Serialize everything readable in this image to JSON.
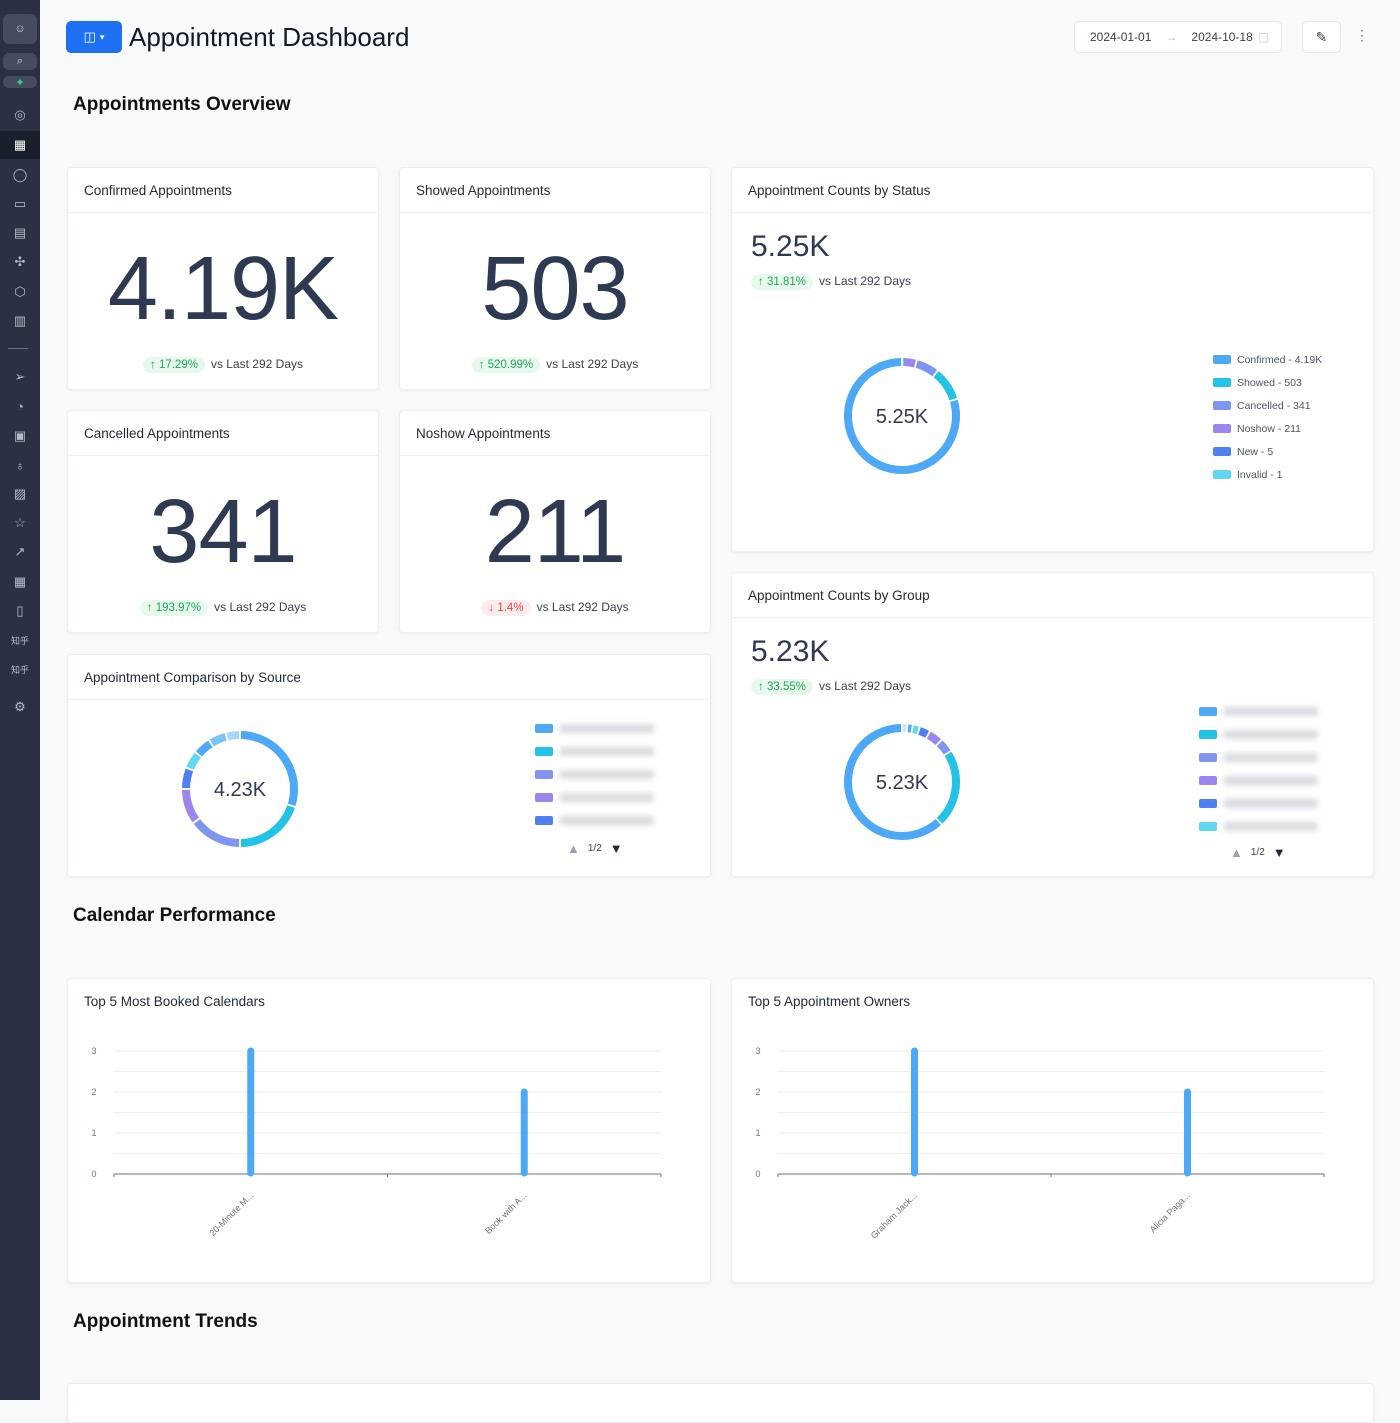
{
  "header": {
    "title": "Appointment Dashboard",
    "date_start": "2024-01-01",
    "date_end": "2024-10-18"
  },
  "sections": {
    "overview": "Appointments Overview",
    "calendar": "Calendar Performance",
    "trends": "Appointment Trends"
  },
  "colors": {
    "accent": "#1f6ff2",
    "up": "#22a45d",
    "down": "#e5484d",
    "bar": "#4da8f5"
  },
  "kpis": [
    {
      "title": "Confirmed Appointments",
      "value": "4.19K",
      "change": "17.29%",
      "direction": "up",
      "compare": "vs Last 292 Days"
    },
    {
      "title": "Showed Appointments",
      "value": "503",
      "change": "520.99%",
      "direction": "up",
      "compare": "vs Last 292 Days"
    },
    {
      "title": "Cancelled Appointments",
      "value": "341",
      "change": "193.97%",
      "direction": "up",
      "compare": "vs Last 292 Days"
    },
    {
      "title": "Noshow Appointments",
      "value": "211",
      "change": "1.4%",
      "direction": "down",
      "compare": "vs Last 292 Days"
    }
  ],
  "status": {
    "title": "Appointment Counts by Status",
    "value": "5.25K",
    "change": "31.81%",
    "compare": "vs Last 292 Days",
    "center": "5.25K",
    "legend": [
      {
        "label": "Confirmed - 4.19K",
        "value": 4190,
        "color": "#4da8f5"
      },
      {
        "label": "Showed - 503",
        "value": 503,
        "color": "#22c3e6"
      },
      {
        "label": "Cancelled - 341",
        "value": 341,
        "color": "#7f95f0"
      },
      {
        "label": "Noshow - 211",
        "value": 211,
        "color": "#9b86ee"
      },
      {
        "label": "New - 5",
        "value": 5,
        "color": "#4f7ff0"
      },
      {
        "label": "Invalid - 1",
        "value": 1,
        "color": "#5fd8f0"
      }
    ]
  },
  "group": {
    "title": "Appointment Counts by Group",
    "value": "5.23K",
    "change": "33.55%",
    "compare": "vs Last 292 Days",
    "center": "5.23K",
    "pager": "1/2",
    "segments": [
      {
        "share": 0.62,
        "color": "#4da8f5"
      },
      {
        "share": 0.22,
        "color": "#22c3e6"
      },
      {
        "share": 0.04,
        "color": "#7f95f0"
      },
      {
        "share": 0.04,
        "color": "#9b86ee"
      },
      {
        "share": 0.03,
        "color": "#4f7ff0"
      },
      {
        "share": 0.02,
        "color": "#5fd8f0"
      },
      {
        "share": 0.015,
        "color": "#4da8f5"
      },
      {
        "share": 0.015,
        "color": "#c9e8ff"
      }
    ]
  },
  "source": {
    "title": "Appointment Comparison by Source",
    "center": "4.23K",
    "pager": "1/2",
    "segments": [
      {
        "share": 0.3,
        "color": "#4da8f5"
      },
      {
        "share": 0.2,
        "color": "#22c3e6"
      },
      {
        "share": 0.15,
        "color": "#7f95f0"
      },
      {
        "share": 0.1,
        "color": "#9b86ee"
      },
      {
        "share": 0.06,
        "color": "#4f7ff0"
      },
      {
        "share": 0.05,
        "color": "#5fd8f0"
      },
      {
        "share": 0.05,
        "color": "#4da8f5"
      },
      {
        "share": 0.05,
        "color": "#7cc4f8"
      },
      {
        "share": 0.04,
        "color": "#a7d8fb"
      }
    ]
  },
  "chart_data": [
    {
      "type": "bar",
      "title": "Top 5 Most Booked Calendars",
      "categories": [
        "20-Minute M...",
        "Book with A..."
      ],
      "values": [
        3,
        2
      ],
      "ylim": [
        0,
        3
      ],
      "yticks": [
        "0",
        "1",
        "2",
        "3"
      ],
      "grid": true
    },
    {
      "type": "bar",
      "title": "Top 5 Appointment Owners",
      "categories": [
        "Graham Jack...",
        "Alicia Paga..."
      ],
      "values": [
        3,
        2
      ],
      "ylim": [
        0,
        3
      ],
      "yticks": [
        "0",
        "1",
        "2",
        "3"
      ],
      "grid": true
    }
  ]
}
